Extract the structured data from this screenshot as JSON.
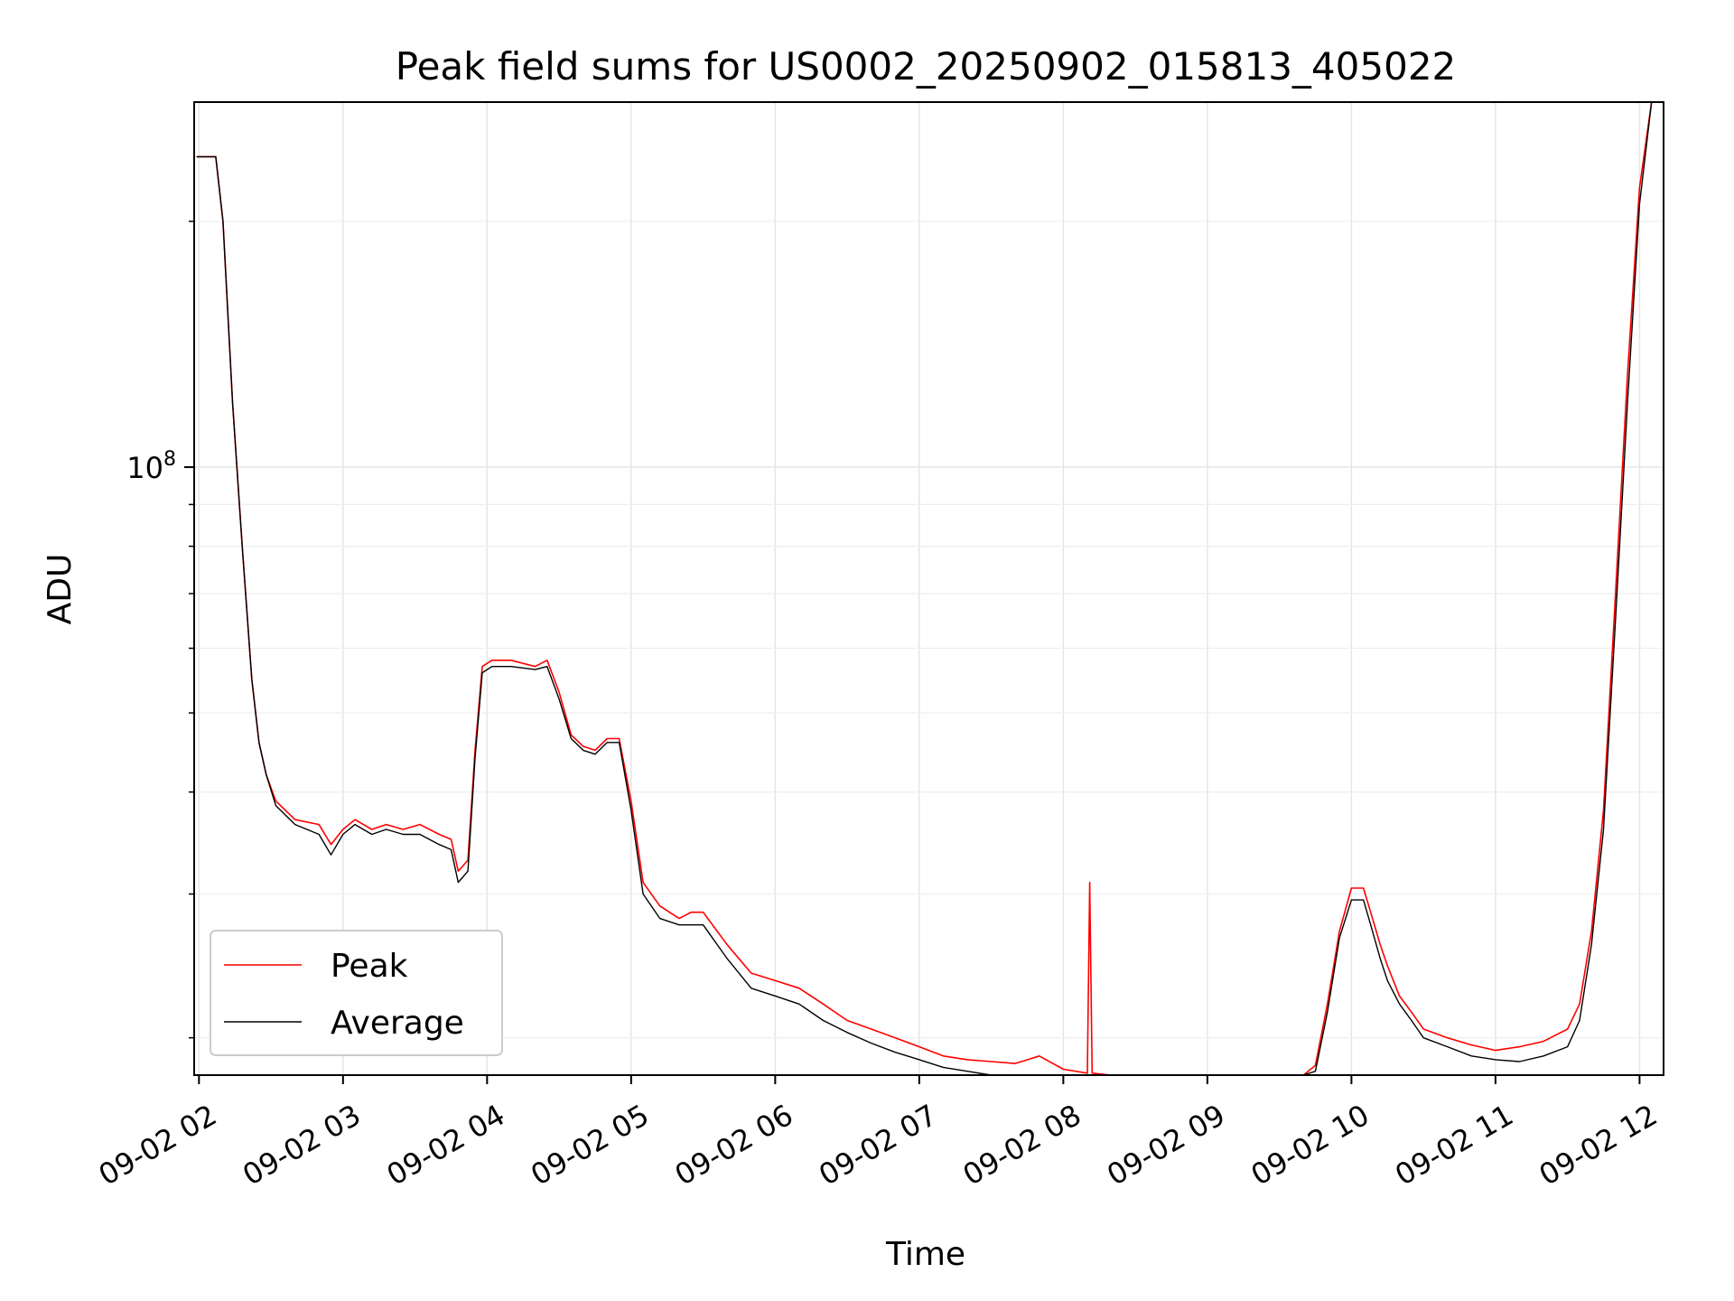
{
  "chart_data": {
    "type": "line",
    "title": "Peak field sums for US0002_20250902_015813_405022",
    "xlabel": "Time",
    "ylabel": "ADU",
    "yscale": "log",
    "xlim": [
      "2025-09-02 01:58",
      "2025-09-02 12:10"
    ],
    "ylim": [
      18000000,
      280000000
    ],
    "grid": true,
    "legend": {
      "position": "lower-left",
      "entries": [
        "Peak",
        "Average"
      ]
    },
    "x_ticks": [
      "09-02 02",
      "09-02 03",
      "09-02 04",
      "09-02 05",
      "09-02 06",
      "09-02 07",
      "09-02 08",
      "09-02 09",
      "09-02 10",
      "09-02 11",
      "09-02 12"
    ],
    "y_ticks": [
      {
        "value": 100000000,
        "base": "10",
        "exp": "8"
      }
    ],
    "colors": {
      "Peak": "#ff0000",
      "Average": "#000000"
    },
    "series": [
      {
        "name": "Peak",
        "x": [
          "2025-09-02 01:59",
          "2025-09-02 02:05",
          "2025-09-02 02:07",
          "2025-09-02 02:10",
          "2025-09-02 02:14",
          "2025-09-02 02:18",
          "2025-09-02 02:22",
          "2025-09-02 02:25",
          "2025-09-02 02:28",
          "2025-09-02 02:32",
          "2025-09-02 02:40",
          "2025-09-02 02:50",
          "2025-09-02 02:55",
          "2025-09-02 03:00",
          "2025-09-02 03:05",
          "2025-09-02 03:12",
          "2025-09-02 03:18",
          "2025-09-02 03:25",
          "2025-09-02 03:32",
          "2025-09-02 03:40",
          "2025-09-02 03:45",
          "2025-09-02 03:48",
          "2025-09-02 03:52",
          "2025-09-02 03:55",
          "2025-09-02 03:58",
          "2025-09-02 04:02",
          "2025-09-02 04:10",
          "2025-09-02 04:20",
          "2025-09-02 04:25",
          "2025-09-02 04:30",
          "2025-09-02 04:35",
          "2025-09-02 04:40",
          "2025-09-02 04:45",
          "2025-09-02 04:50",
          "2025-09-02 04:55",
          "2025-09-02 05:00",
          "2025-09-02 05:05",
          "2025-09-02 05:12",
          "2025-09-02 05:20",
          "2025-09-02 05:25",
          "2025-09-02 05:30",
          "2025-09-02 05:40",
          "2025-09-02 05:50",
          "2025-09-02 06:00",
          "2025-09-02 06:10",
          "2025-09-02 06:20",
          "2025-09-02 06:30",
          "2025-09-02 06:40",
          "2025-09-02 06:50",
          "2025-09-02 07:00",
          "2025-09-02 07:10",
          "2025-09-02 07:20",
          "2025-09-02 07:30",
          "2025-09-02 07:40",
          "2025-09-02 07:50",
          "2025-09-02 08:00",
          "2025-09-02 08:10",
          "2025-09-02 08:11",
          "2025-09-02 08:12",
          "2025-09-02 08:20",
          "2025-09-02 08:30",
          "2025-09-02 08:40",
          "2025-09-02 08:50",
          "2025-09-02 09:00",
          "2025-09-02 09:10",
          "2025-09-02 09:20",
          "2025-09-02 09:30",
          "2025-09-02 09:40",
          "2025-09-02 09:45",
          "2025-09-02 09:50",
          "2025-09-02 09:55",
          "2025-09-02 10:00",
          "2025-09-02 10:05",
          "2025-09-02 10:08",
          "2025-09-02 10:12",
          "2025-09-02 10:15",
          "2025-09-02 10:20",
          "2025-09-02 10:25",
          "2025-09-02 10:30",
          "2025-09-02 10:40",
          "2025-09-02 10:50",
          "2025-09-02 11:00",
          "2025-09-02 11:10",
          "2025-09-02 11:20",
          "2025-09-02 11:30",
          "2025-09-02 11:35",
          "2025-09-02 11:40",
          "2025-09-02 11:45",
          "2025-09-02 11:50",
          "2025-09-02 11:55",
          "2025-09-02 12:00",
          "2025-09-02 12:05"
        ],
        "y": [
          240000000,
          240000000,
          240000000,
          200000000,
          120000000,
          80000000,
          55000000,
          46000000,
          42000000,
          39000000,
          37000000,
          36500000,
          34500000,
          36000000,
          37000000,
          36000000,
          36500000,
          36000000,
          36500000,
          35500000,
          35000000,
          32000000,
          33000000,
          45000000,
          57000000,
          58000000,
          58000000,
          57000000,
          58000000,
          53000000,
          47000000,
          45500000,
          45000000,
          46500000,
          46500000,
          39000000,
          31000000,
          29000000,
          28000000,
          28500000,
          28500000,
          26000000,
          24000000,
          23500000,
          23000000,
          22000000,
          21000000,
          20500000,
          20000000,
          19500000,
          19000000,
          18800000,
          18700000,
          18600000,
          19000000,
          18300000,
          18100000,
          31000000,
          18100000,
          18000000,
          17800000,
          17700000,
          17600000,
          17700000,
          17800000,
          17800000,
          17800000,
          17800000,
          18500000,
          22000000,
          27000000,
          30500000,
          30500000,
          28500000,
          26000000,
          24500000,
          22500000,
          21500000,
          20500000,
          20000000,
          19600000,
          19300000,
          19500000,
          19800000,
          20500000,
          22000000,
          27000000,
          38000000,
          70000000,
          130000000,
          220000000,
          290000000
        ]
      },
      {
        "name": "Average",
        "x": [
          "2025-09-02 01:59",
          "2025-09-02 02:05",
          "2025-09-02 02:07",
          "2025-09-02 02:10",
          "2025-09-02 02:14",
          "2025-09-02 02:18",
          "2025-09-02 02:22",
          "2025-09-02 02:25",
          "2025-09-02 02:28",
          "2025-09-02 02:32",
          "2025-09-02 02:40",
          "2025-09-02 02:50",
          "2025-09-02 02:55",
          "2025-09-02 03:00",
          "2025-09-02 03:05",
          "2025-09-02 03:12",
          "2025-09-02 03:18",
          "2025-09-02 03:25",
          "2025-09-02 03:32",
          "2025-09-02 03:40",
          "2025-09-02 03:45",
          "2025-09-02 03:48",
          "2025-09-02 03:52",
          "2025-09-02 03:55",
          "2025-09-02 03:58",
          "2025-09-02 04:02",
          "2025-09-02 04:10",
          "2025-09-02 04:20",
          "2025-09-02 04:25",
          "2025-09-02 04:30",
          "2025-09-02 04:35",
          "2025-09-02 04:40",
          "2025-09-02 04:45",
          "2025-09-02 04:50",
          "2025-09-02 04:55",
          "2025-09-02 05:00",
          "2025-09-02 05:05",
          "2025-09-02 05:12",
          "2025-09-02 05:20",
          "2025-09-02 05:25",
          "2025-09-02 05:30",
          "2025-09-02 05:40",
          "2025-09-02 05:50",
          "2025-09-02 06:00",
          "2025-09-02 06:10",
          "2025-09-02 06:20",
          "2025-09-02 06:30",
          "2025-09-02 06:40",
          "2025-09-02 06:50",
          "2025-09-02 07:00",
          "2025-09-02 07:10",
          "2025-09-02 07:20",
          "2025-09-02 07:30",
          "2025-09-02 07:40",
          "2025-09-02 07:50",
          "2025-09-02 08:00",
          "2025-09-02 08:10",
          "2025-09-02 08:20",
          "2025-09-02 08:30",
          "2025-09-02 08:40",
          "2025-09-02 08:50",
          "2025-09-02 09:00",
          "2025-09-02 09:10",
          "2025-09-02 09:20",
          "2025-09-02 09:30",
          "2025-09-02 09:40",
          "2025-09-02 09:45",
          "2025-09-02 09:50",
          "2025-09-02 09:55",
          "2025-09-02 10:00",
          "2025-09-02 10:05",
          "2025-09-02 10:08",
          "2025-09-02 10:12",
          "2025-09-02 10:15",
          "2025-09-02 10:20",
          "2025-09-02 10:25",
          "2025-09-02 10:30",
          "2025-09-02 10:40",
          "2025-09-02 10:50",
          "2025-09-02 11:00",
          "2025-09-02 11:10",
          "2025-09-02 11:20",
          "2025-09-02 11:30",
          "2025-09-02 11:35",
          "2025-09-02 11:40",
          "2025-09-02 11:45",
          "2025-09-02 11:50",
          "2025-09-02 11:55",
          "2025-09-02 12:00",
          "2025-09-02 12:05"
        ],
        "y": [
          240000000,
          240000000,
          240000000,
          200000000,
          120000000,
          80000000,
          55000000,
          46000000,
          42000000,
          38500000,
          36500000,
          35500000,
          33500000,
          35500000,
          36500000,
          35500000,
          36000000,
          35500000,
          35500000,
          34500000,
          34000000,
          31000000,
          32000000,
          44000000,
          56000000,
          57000000,
          57000000,
          56500000,
          57000000,
          52000000,
          46500000,
          45000000,
          44500000,
          46000000,
          46000000,
          38000000,
          30000000,
          28000000,
          27500000,
          27500000,
          27500000,
          25000000,
          23000000,
          22500000,
          22000000,
          21000000,
          20300000,
          19700000,
          19200000,
          18800000,
          18400000,
          18200000,
          18000000,
          17800000,
          17600000,
          17500000,
          17500000,
          17600000,
          17600000,
          17600000,
          17600000,
          17600000,
          17600000,
          17700000,
          17700000,
          17700000,
          18200000,
          21500000,
          26500000,
          29500000,
          29500000,
          27500000,
          25000000,
          23500000,
          22000000,
          21000000,
          20000000,
          19500000,
          19000000,
          18800000,
          18700000,
          19000000,
          19500000,
          21000000,
          26000000,
          36000000,
          65000000,
          120000000,
          210000000,
          290000000
        ]
      }
    ]
  }
}
